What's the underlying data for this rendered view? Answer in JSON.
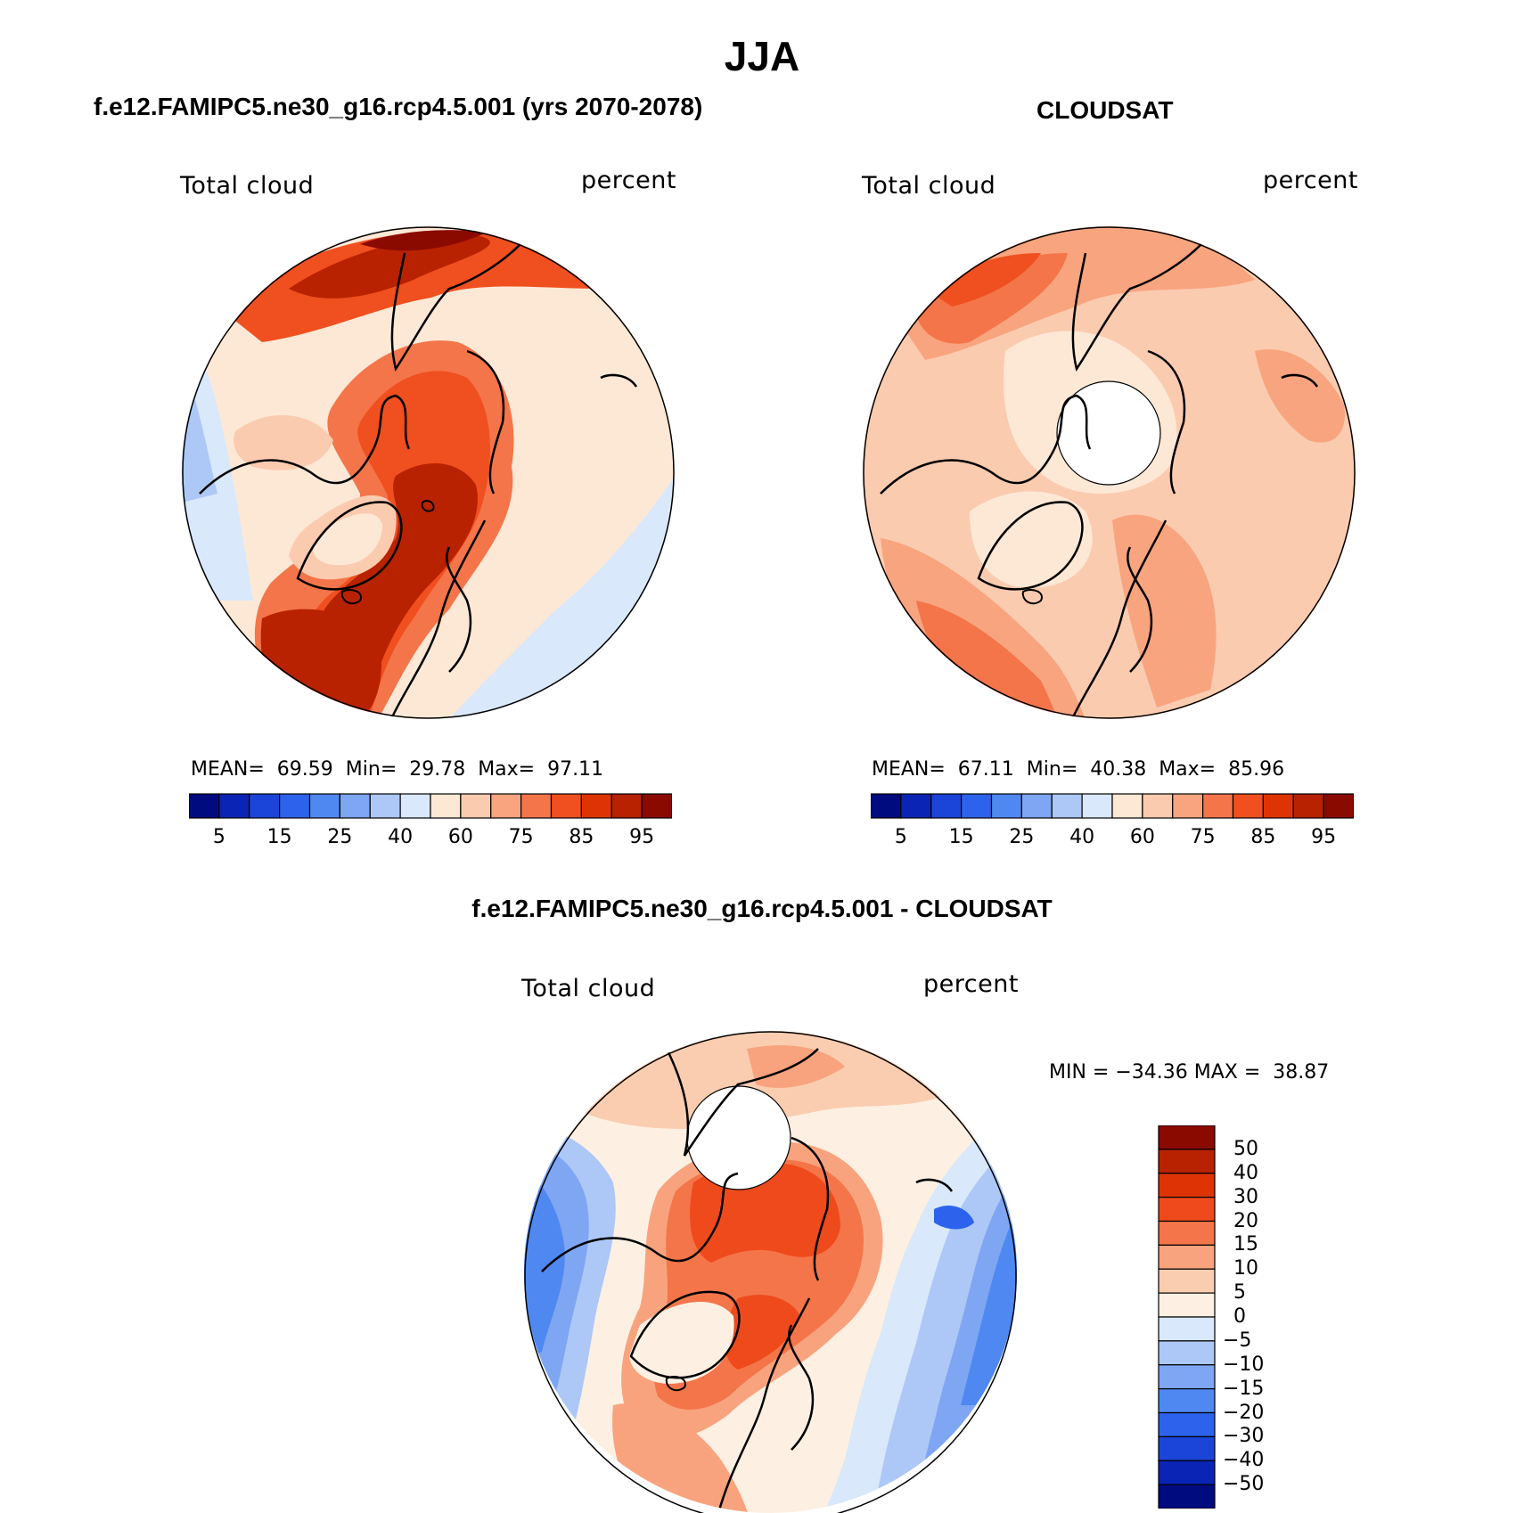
{
  "figure_title": "JJA",
  "panels": [
    {
      "id": "model",
      "title": "f.e12.FAMIPC5.ne30_g16.rcp4.5.001 (yrs 2070-2078)",
      "variable_label": "Total cloud",
      "units_label": "percent",
      "stats_text": "MEAN=  69.59  Min=  29.78  Max=  97.11",
      "colorbar_ticks": [
        "5",
        "15",
        "25",
        "40",
        "60",
        "75",
        "85",
        "95"
      ],
      "polar_hole": false
    },
    {
      "id": "obs",
      "title": "CLOUDSAT",
      "variable_label": "Total cloud",
      "units_label": "percent",
      "stats_text": "MEAN=  67.11  Min=  40.38  Max=  85.96",
      "colorbar_ticks": [
        "5",
        "15",
        "25",
        "40",
        "60",
        "75",
        "85",
        "95"
      ],
      "polar_hole": true
    },
    {
      "id": "diff",
      "title": "f.e12.FAMIPC5.ne30_g16.rcp4.5.001 - CLOUDSAT",
      "variable_label": "Total cloud",
      "units_label": "percent",
      "stats_text": "MIN = −34.36 MAX =  38.87",
      "colorbar_ticks": [
        "50",
        "40",
        "30",
        "20",
        "15",
        "10",
        "5",
        "0",
        "−5",
        "−10",
        "−15",
        "−20",
        "−30",
        "−40",
        "−50"
      ],
      "polar_hole": true
    }
  ],
  "colors": {
    "abs_scale": [
      "#000b80",
      "#0a24b5",
      "#1a45d8",
      "#2d63ec",
      "#4f88f0",
      "#7ea6f3",
      "#adc8f6",
      "#d9e8fb",
      "#fde8d6",
      "#fbcbb0",
      "#f8a47f",
      "#f47549",
      "#f04f1f",
      "#de3405",
      "#b82200",
      "#8b0a00"
    ],
    "diff_scale": [
      "#000b80",
      "#0a24b5",
      "#1a45d8",
      "#2d63ec",
      "#4f88f0",
      "#7ea6f3",
      "#adc8f6",
      "#d9e8fb",
      "#fdf0e2",
      "#fbcdb0",
      "#f8a37e",
      "#f47549",
      "#ef4a1c",
      "#de3405",
      "#b82200",
      "#8b0a00"
    ],
    "coastline": "#000000"
  }
}
